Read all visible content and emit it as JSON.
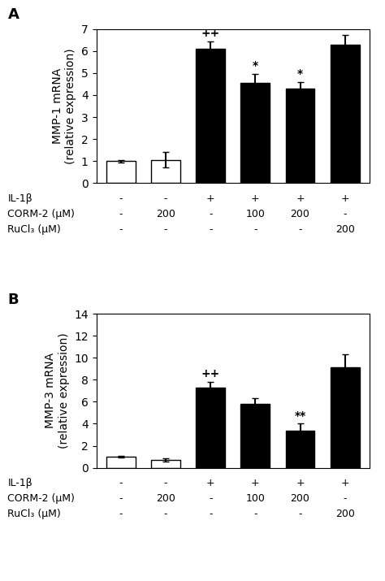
{
  "chart_data": [
    {
      "type": "bar",
      "title": "A",
      "y_label": "MMP-1 mRNA\n(relative expression)",
      "categories": [
        null,
        null,
        null,
        null,
        null,
        null
      ],
      "values": [
        1.0,
        1.05,
        6.1,
        4.55,
        4.3,
        6.3
      ],
      "errors": [
        0.05,
        0.35,
        0.35,
        0.4,
        0.3,
        0.45
      ],
      "colors": [
        "white",
        "white",
        "black",
        "black",
        "black",
        "black"
      ],
      "ylim": [
        0,
        7
      ],
      "yticks": [
        0,
        1,
        2,
        3,
        4,
        5,
        6,
        7
      ],
      "annotations": [
        {
          "text": "++",
          "index": 2
        },
        {
          "text": "*",
          "index": 3
        },
        {
          "text": "*",
          "index": 4
        }
      ],
      "table": {
        "rows": [
          "IL-1β",
          "CORM-2 (μM)",
          "RuCl₃ (μM)"
        ],
        "cells": [
          [
            "-",
            "-",
            "+",
            "+",
            "+",
            "+"
          ],
          [
            "-",
            "200",
            "-",
            "100",
            "200",
            "-"
          ],
          [
            "-",
            "-",
            "-",
            "-",
            "-",
            "200"
          ]
        ]
      }
    },
    {
      "type": "bar",
      "title": "B",
      "y_label": "MMP-3 mRNA\n(relative expression)",
      "categories": [
        null,
        null,
        null,
        null,
        null,
        null
      ],
      "values": [
        1.0,
        0.7,
        7.3,
        5.8,
        3.4,
        9.1
      ],
      "errors": [
        0.1,
        0.15,
        0.5,
        0.55,
        0.6,
        1.2
      ],
      "colors": [
        "white",
        "white",
        "black",
        "black",
        "black",
        "black"
      ],
      "ylim": [
        0,
        14
      ],
      "yticks": [
        0,
        2,
        4,
        6,
        8,
        10,
        12,
        14
      ],
      "annotations": [
        {
          "text": "++",
          "index": 2
        },
        {
          "text": "**",
          "index": 4
        }
      ],
      "table": {
        "rows": [
          "IL-1β",
          "CORM-2 (μM)",
          "RuCl₃ (μM)"
        ],
        "cells": [
          [
            "-",
            "-",
            "+",
            "+",
            "+",
            "+"
          ],
          [
            "-",
            "200",
            "-",
            "100",
            "200",
            "-"
          ],
          [
            "-",
            "-",
            "-",
            "-",
            "-",
            "200"
          ]
        ]
      }
    }
  ]
}
